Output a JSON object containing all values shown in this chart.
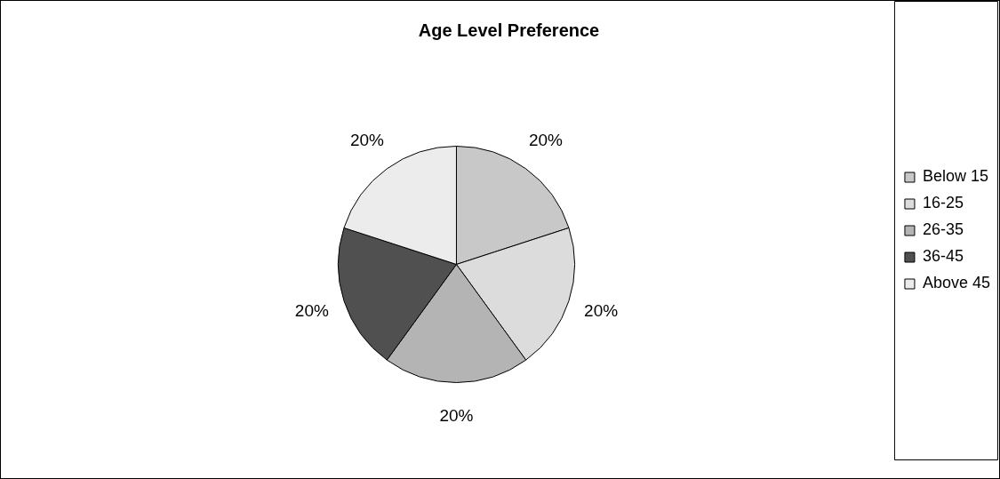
{
  "chart_data": {
    "type": "pie",
    "title": "Age Level Preference",
    "categories": [
      "Below 15",
      "16-25",
      "26-35",
      "36-45",
      "Above 45"
    ],
    "values": [
      20,
      20,
      20,
      20,
      20
    ],
    "value_labels": [
      "20%",
      "20%",
      "20%",
      "20%",
      "20%"
    ],
    "colors": [
      "#c8c8c8",
      "#dcdcdc",
      "#b4b4b4",
      "#505050",
      "#ececec"
    ],
    "legend": "right"
  }
}
